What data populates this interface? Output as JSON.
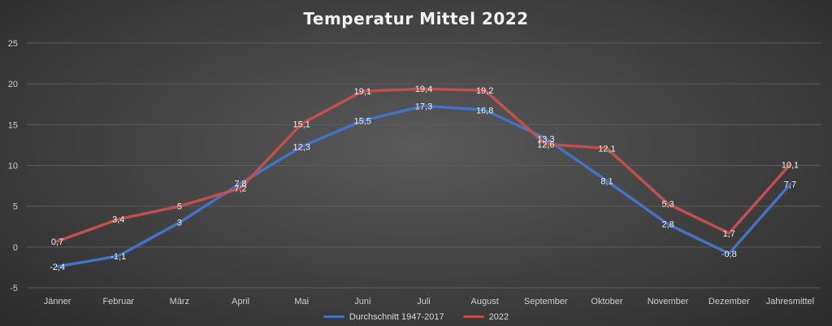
{
  "chart_data": {
    "type": "line",
    "title": "Temperatur Mittel 2022",
    "categories": [
      "Jänner",
      "Februar",
      "März",
      "April",
      "Mai",
      "Juni",
      "Juli",
      "August",
      "September",
      "Oktober",
      "November",
      "Dezember",
      "Jahresmittel"
    ],
    "series": [
      {
        "name": "Durchschnitt 1947-2017",
        "color": "#4472c4",
        "values": [
          -2.4,
          -1.1,
          3,
          7.8,
          12.3,
          15.5,
          17.3,
          16.8,
          13.3,
          8.1,
          2.8,
          -0.8,
          7.7
        ],
        "labels": [
          "-2,4",
          "-1,1",
          "3",
          "7,8",
          "12,3",
          "15,5",
          "17,3",
          "16,8",
          "13,3",
          "8,1",
          "2,8",
          "-0,8",
          "7,7"
        ]
      },
      {
        "name": "2022",
        "color": "#c0504d",
        "values": [
          0.7,
          3.4,
          5,
          7.2,
          15.1,
          19.1,
          19.4,
          19.2,
          12.6,
          12.1,
          5.3,
          1.7,
          10.1
        ],
        "labels": [
          "0,7",
          "3,4",
          "5",
          "7,2",
          "15,1",
          "19,1",
          "19,4",
          "19,2",
          "12,6",
          "12,1",
          "5,3",
          "1,7",
          "10,1"
        ]
      }
    ],
    "ylim": [
      -5,
      25
    ],
    "yticks": [
      -5,
      0,
      5,
      10,
      15,
      20,
      25
    ],
    "grid": true,
    "legend_position": "bottom",
    "xlabel": "",
    "ylabel": ""
  }
}
